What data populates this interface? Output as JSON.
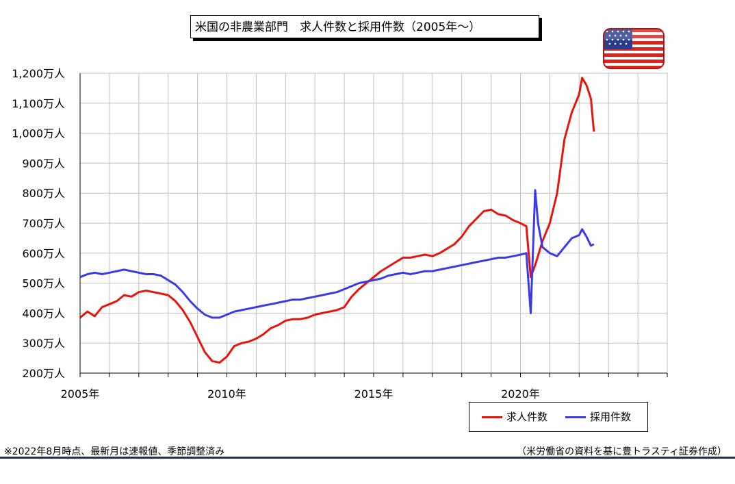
{
  "header": {
    "title": "米国の非農業部門　求人件数と採用件数（2005年～）"
  },
  "footer": {
    "footnote": "※2022年8月時点、最新月は速報値、季節調整済み",
    "source": "（米労働省の資料を基に豊トラスティ証券作成）"
  },
  "colors": {
    "job_openings": "#e8140c",
    "hires": "#3a3ae8",
    "grid": "#c0c0c0"
  },
  "icons": {
    "flag": "us-flag-icon"
  },
  "chart_data": {
    "type": "line",
    "title": "米国の非農業部門　求人件数と採用件数（2005年～）",
    "ylim": [
      200,
      1200
    ],
    "yticks": [
      200,
      300,
      400,
      500,
      600,
      700,
      800,
      900,
      1000,
      1100,
      1200
    ],
    "ytick_labels": [
      "200万人",
      "300万人",
      "400万人",
      "500万人",
      "600万人",
      "700万人",
      "800万人",
      "900万人",
      "1,000万人",
      "1,100万人",
      "1,200万人"
    ],
    "xlim": [
      2005.0,
      2025.0
    ],
    "xticks": [
      2005,
      2010,
      2015,
      2020
    ],
    "xtick_labels": [
      "2005年",
      "2010年",
      "2015年",
      "2020年"
    ],
    "grid": true,
    "legend_position": "bottom-right",
    "series": [
      {
        "name": "求人件数",
        "color": "#e8140c",
        "points": [
          [
            2005.0,
            385
          ],
          [
            2005.25,
            405
          ],
          [
            2005.5,
            390
          ],
          [
            2005.75,
            420
          ],
          [
            2006.0,
            430
          ],
          [
            2006.25,
            440
          ],
          [
            2006.5,
            460
          ],
          [
            2006.75,
            455
          ],
          [
            2007.0,
            470
          ],
          [
            2007.25,
            475
          ],
          [
            2007.5,
            470
          ],
          [
            2007.75,
            465
          ],
          [
            2008.0,
            460
          ],
          [
            2008.25,
            440
          ],
          [
            2008.5,
            410
          ],
          [
            2008.75,
            370
          ],
          [
            2009.0,
            320
          ],
          [
            2009.25,
            270
          ],
          [
            2009.5,
            240
          ],
          [
            2009.75,
            235
          ],
          [
            2010.0,
            255
          ],
          [
            2010.25,
            290
          ],
          [
            2010.5,
            300
          ],
          [
            2010.75,
            305
          ],
          [
            2011.0,
            315
          ],
          [
            2011.25,
            330
          ],
          [
            2011.5,
            350
          ],
          [
            2011.75,
            360
          ],
          [
            2012.0,
            375
          ],
          [
            2012.25,
            380
          ],
          [
            2012.5,
            380
          ],
          [
            2012.75,
            385
          ],
          [
            2013.0,
            395
          ],
          [
            2013.25,
            400
          ],
          [
            2013.5,
            405
          ],
          [
            2013.75,
            410
          ],
          [
            2014.0,
            420
          ],
          [
            2014.25,
            455
          ],
          [
            2014.5,
            480
          ],
          [
            2014.75,
            500
          ],
          [
            2015.0,
            520
          ],
          [
            2015.25,
            540
          ],
          [
            2015.5,
            555
          ],
          [
            2015.75,
            570
          ],
          [
            2016.0,
            585
          ],
          [
            2016.25,
            585
          ],
          [
            2016.5,
            590
          ],
          [
            2016.75,
            595
          ],
          [
            2017.0,
            590
          ],
          [
            2017.25,
            600
          ],
          [
            2017.5,
            615
          ],
          [
            2017.75,
            630
          ],
          [
            2018.0,
            655
          ],
          [
            2018.25,
            690
          ],
          [
            2018.5,
            715
          ],
          [
            2018.75,
            740
          ],
          [
            2019.0,
            745
          ],
          [
            2019.25,
            730
          ],
          [
            2019.5,
            725
          ],
          [
            2019.75,
            710
          ],
          [
            2020.0,
            700
          ],
          [
            2020.2,
            690
          ],
          [
            2020.35,
            520
          ],
          [
            2020.5,
            560
          ],
          [
            2020.75,
            640
          ],
          [
            2021.0,
            700
          ],
          [
            2021.25,
            800
          ],
          [
            2021.5,
            980
          ],
          [
            2021.75,
            1070
          ],
          [
            2022.0,
            1130
          ],
          [
            2022.1,
            1185
          ],
          [
            2022.25,
            1160
          ],
          [
            2022.4,
            1115
          ],
          [
            2022.5,
            1005
          ]
        ]
      },
      {
        "name": "採用件数",
        "color": "#3a3ae8",
        "points": [
          [
            2005.0,
            520
          ],
          [
            2005.25,
            530
          ],
          [
            2005.5,
            535
          ],
          [
            2005.75,
            530
          ],
          [
            2006.0,
            535
          ],
          [
            2006.25,
            540
          ],
          [
            2006.5,
            545
          ],
          [
            2006.75,
            540
          ],
          [
            2007.0,
            535
          ],
          [
            2007.25,
            530
          ],
          [
            2007.5,
            530
          ],
          [
            2007.75,
            525
          ],
          [
            2008.0,
            510
          ],
          [
            2008.25,
            495
          ],
          [
            2008.5,
            470
          ],
          [
            2008.75,
            440
          ],
          [
            2009.0,
            415
          ],
          [
            2009.25,
            395
          ],
          [
            2009.5,
            385
          ],
          [
            2009.75,
            385
          ],
          [
            2010.0,
            395
          ],
          [
            2010.25,
            405
          ],
          [
            2010.5,
            410
          ],
          [
            2010.75,
            415
          ],
          [
            2011.0,
            420
          ],
          [
            2011.25,
            425
          ],
          [
            2011.5,
            430
          ],
          [
            2011.75,
            435
          ],
          [
            2012.0,
            440
          ],
          [
            2012.25,
            445
          ],
          [
            2012.5,
            445
          ],
          [
            2012.75,
            450
          ],
          [
            2013.0,
            455
          ],
          [
            2013.25,
            460
          ],
          [
            2013.5,
            465
          ],
          [
            2013.75,
            470
          ],
          [
            2014.0,
            480
          ],
          [
            2014.25,
            490
          ],
          [
            2014.5,
            500
          ],
          [
            2014.75,
            505
          ],
          [
            2015.0,
            510
          ],
          [
            2015.25,
            515
          ],
          [
            2015.5,
            525
          ],
          [
            2015.75,
            530
          ],
          [
            2016.0,
            535
          ],
          [
            2016.25,
            530
          ],
          [
            2016.5,
            535
          ],
          [
            2016.75,
            540
          ],
          [
            2017.0,
            540
          ],
          [
            2017.25,
            545
          ],
          [
            2017.5,
            550
          ],
          [
            2017.75,
            555
          ],
          [
            2018.0,
            560
          ],
          [
            2018.25,
            565
          ],
          [
            2018.5,
            570
          ],
          [
            2018.75,
            575
          ],
          [
            2019.0,
            580
          ],
          [
            2019.25,
            585
          ],
          [
            2019.5,
            585
          ],
          [
            2019.75,
            590
          ],
          [
            2020.0,
            595
          ],
          [
            2020.2,
            600
          ],
          [
            2020.35,
            400
          ],
          [
            2020.5,
            810
          ],
          [
            2020.6,
            700
          ],
          [
            2020.75,
            620
          ],
          [
            2021.0,
            600
          ],
          [
            2021.25,
            590
          ],
          [
            2021.5,
            620
          ],
          [
            2021.75,
            650
          ],
          [
            2022.0,
            660
          ],
          [
            2022.1,
            680
          ],
          [
            2022.25,
            655
          ],
          [
            2022.4,
            625
          ],
          [
            2022.5,
            630
          ]
        ]
      }
    ]
  }
}
